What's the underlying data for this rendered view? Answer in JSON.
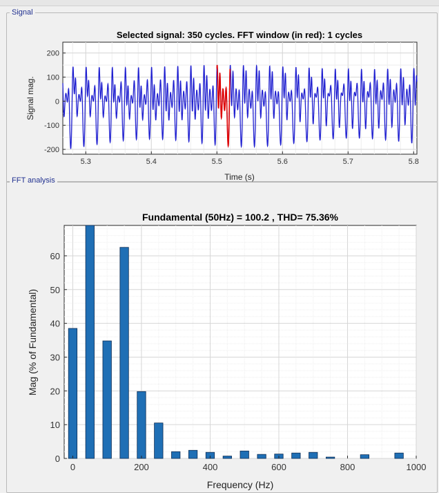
{
  "panels": {
    "signal_title": "Signal",
    "fft_title": "FFT analysis"
  },
  "chart_data": [
    {
      "type": "line",
      "title": "Selected signal: 350 cycles. FFT window (in red): 1 cycles",
      "xlabel": "Time (s)",
      "ylabel": "Signal mag.",
      "xlim": [
        5.265,
        5.805
      ],
      "ylim": [
        -220,
        245
      ],
      "xticks": [
        5.3,
        5.4,
        5.5,
        5.6,
        5.7,
        5.8
      ],
      "yticks": [
        -200,
        -100,
        0,
        100,
        200
      ],
      "grid": true,
      "series": [
        {
          "color": "#1f1fd0",
          "x_range": [
            5.265,
            5.805
          ]
        },
        {
          "color": "#e00000",
          "x_range": [
            5.5,
            5.52
          ]
        }
      ]
    },
    {
      "type": "bar",
      "title": "Fundamental (50Hz) = 100.2 , THD= 75.36%",
      "xlabel": "Frequency (Hz)",
      "ylabel": "Mag (% of Fundamental)",
      "xlim": [
        -25,
        1000
      ],
      "ylim": [
        0,
        69
      ],
      "xticks": [
        0,
        200,
        400,
        600,
        800,
        1000
      ],
      "yticks": [
        0,
        10,
        20,
        30,
        40,
        50,
        60
      ],
      "grid": true,
      "bar_color": "#1f6fb5",
      "x": [
        0,
        50,
        100,
        150,
        200,
        250,
        300,
        350,
        400,
        450,
        500,
        550,
        600,
        650,
        700,
        750,
        800,
        850,
        900,
        950
      ],
      "values": [
        38.5,
        69,
        34.8,
        62.5,
        19.8,
        10.5,
        2.0,
        2.4,
        1.8,
        0.7,
        2.2,
        1.2,
        1.3,
        1.6,
        1.8,
        0.4,
        0,
        1.1,
        0,
        1.6
      ]
    }
  ]
}
